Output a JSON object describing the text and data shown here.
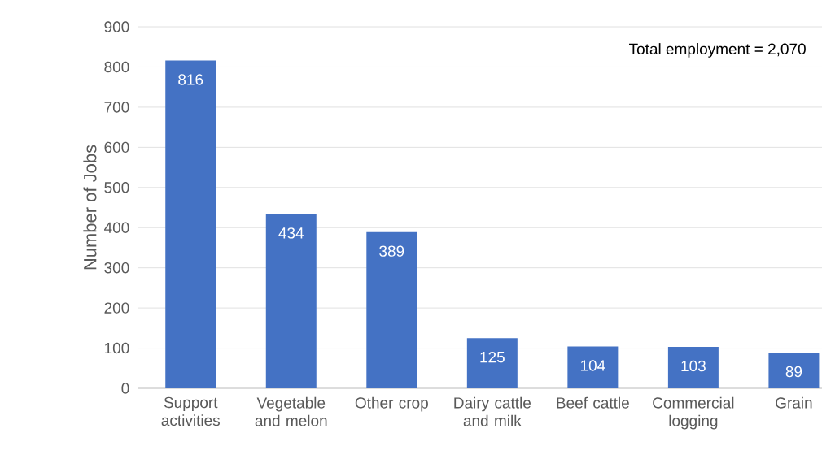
{
  "chart_data": {
    "type": "bar",
    "categories": [
      "Support activities",
      "Vegetable and melon",
      "Other crop",
      "Dairy cattle and milk",
      "Beef cattle",
      "Commercial logging",
      "Grain"
    ],
    "values": [
      816,
      434,
      389,
      125,
      104,
      103,
      89
    ],
    "color": "#4472c4",
    "ylabel": "Number of Jobs",
    "ylim": [
      0,
      900
    ],
    "yticks": [
      0,
      100,
      200,
      300,
      400,
      500,
      600,
      700,
      800,
      900
    ],
    "grid": "y",
    "data_labels": true,
    "annotations": [
      "Total employment = 2,070"
    ]
  }
}
